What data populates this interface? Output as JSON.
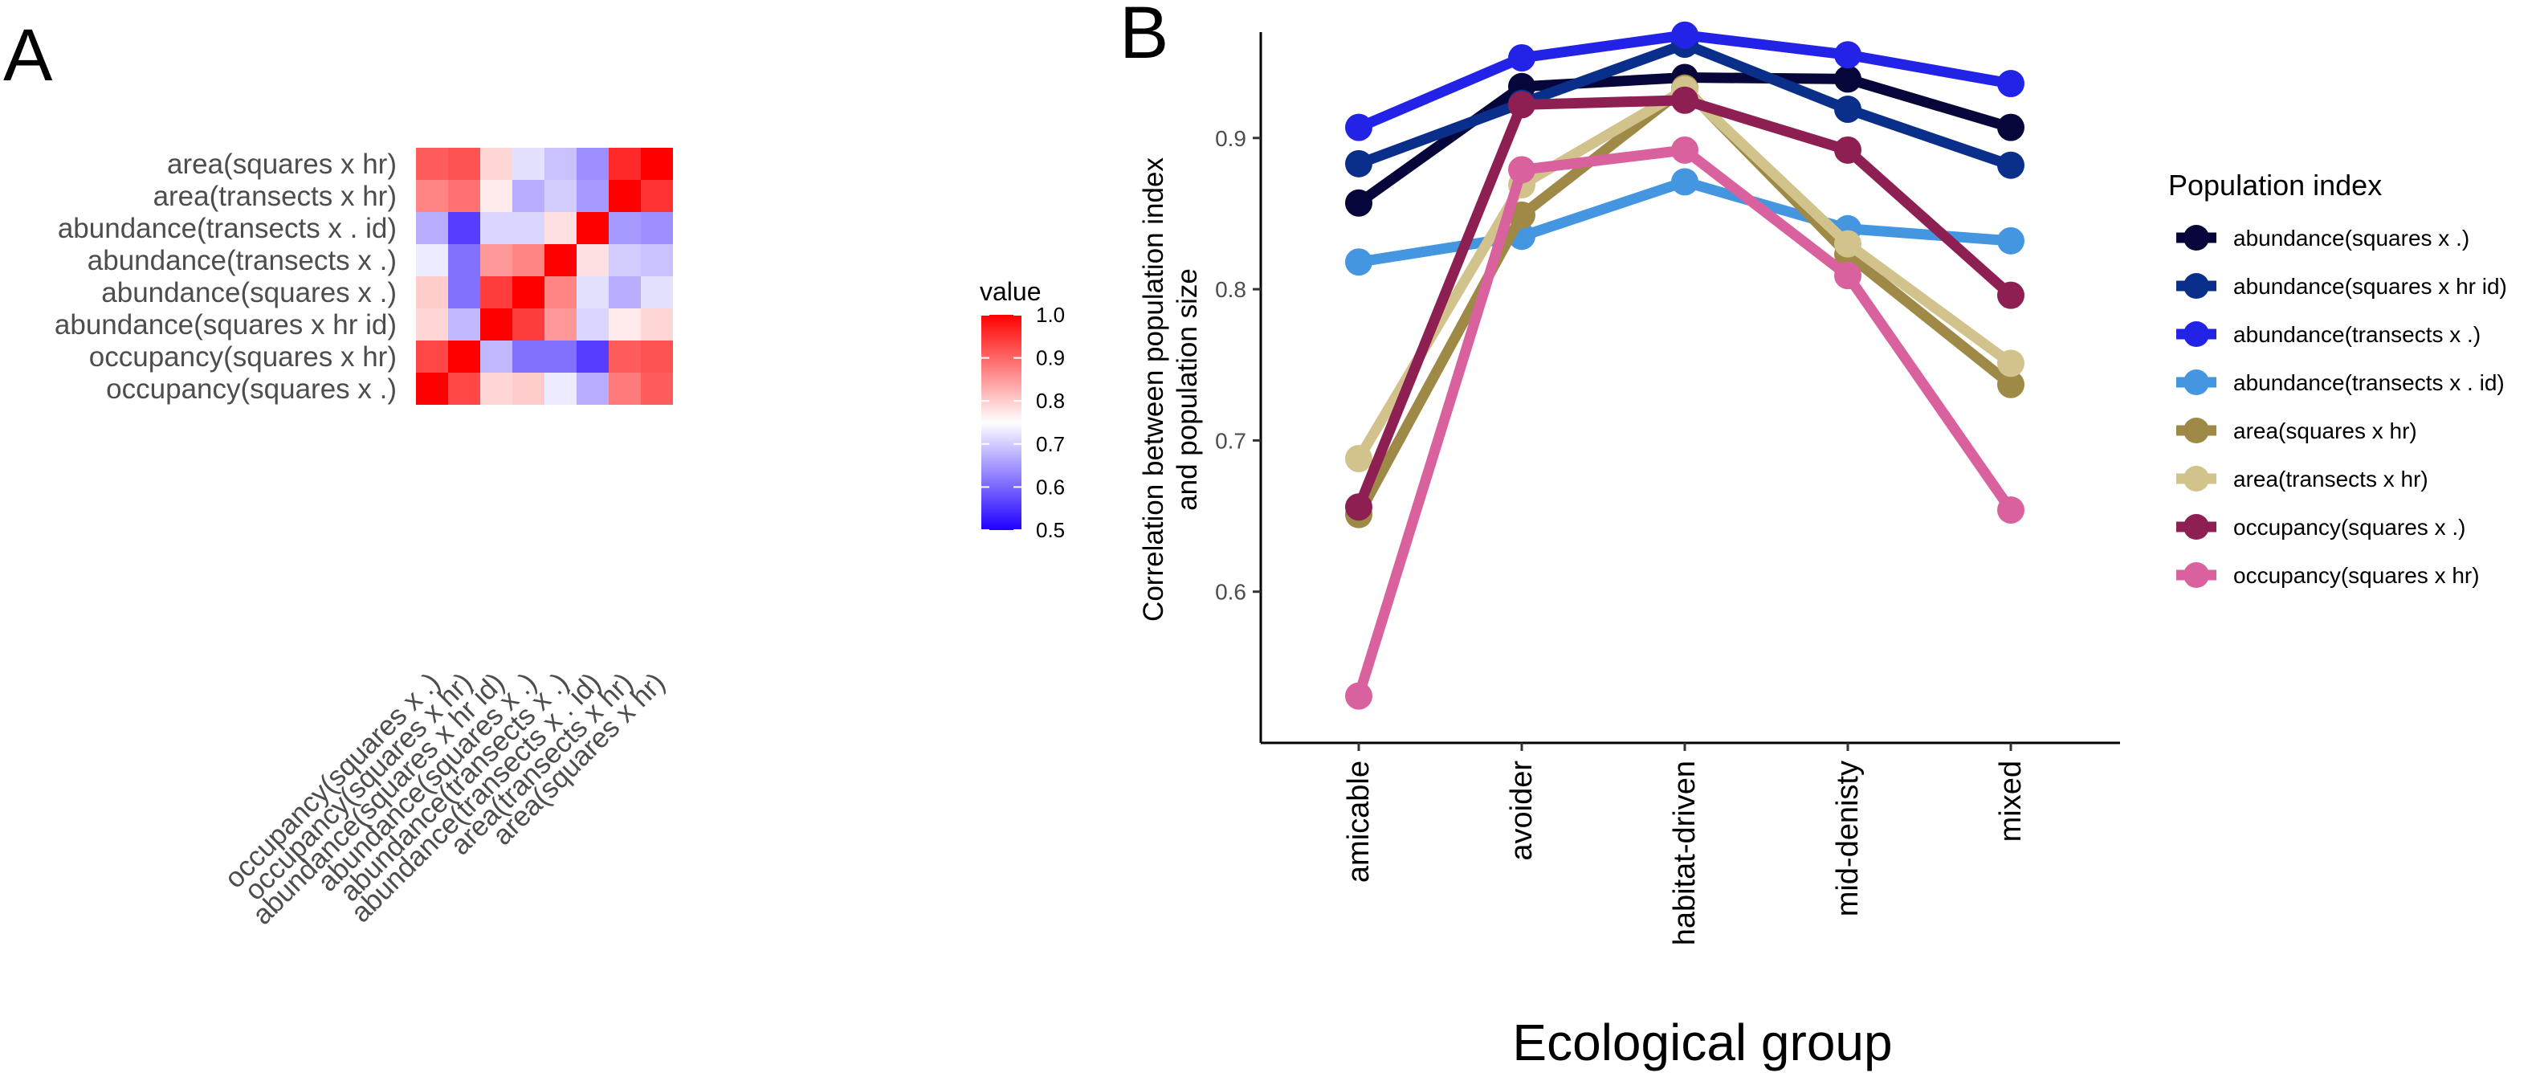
{
  "panel_labels": {
    "a": "A",
    "b": "B"
  },
  "chart_data": [
    {
      "type": "heatmap",
      "panel": "A",
      "rows": [
        "area(squares x hr)",
        "area(transects x hr)",
        "abundance(transects x . id)",
        "abundance(transects x .)",
        "abundance(squares x .)",
        "abundance(squares x hr id)",
        "occupancy(squares x hr)",
        "occupancy(squares x .)"
      ],
      "columns": [
        "occupancy(squares x .)",
        "occupancy(squares x hr)",
        "abundance(squares x hr id)",
        "abundance(squares x .)",
        "abundance(transects x .)",
        "abundance(transects x . id)",
        "area(transects x hr)",
        "area(squares x hr)"
      ],
      "values": [
        [
          0.91,
          0.92,
          0.79,
          0.72,
          0.69,
          0.64,
          0.96,
          1.0
        ],
        [
          0.87,
          0.89,
          0.77,
          0.67,
          0.7,
          0.65,
          1.0,
          0.95
        ],
        [
          0.67,
          0.56,
          0.71,
          0.71,
          0.78,
          1.0,
          0.65,
          0.64
        ],
        [
          0.73,
          0.61,
          0.85,
          0.87,
          1.0,
          0.78,
          0.7,
          0.69
        ],
        [
          0.8,
          0.61,
          0.94,
          1.0,
          0.87,
          0.72,
          0.67,
          0.72
        ],
        [
          0.79,
          0.68,
          1.0,
          0.94,
          0.85,
          0.71,
          0.77,
          0.79
        ],
        [
          0.93,
          1.0,
          0.68,
          0.61,
          0.61,
          0.56,
          0.91,
          0.92
        ],
        [
          1.0,
          0.93,
          0.79,
          0.8,
          0.73,
          0.67,
          0.88,
          0.91
        ]
      ],
      "legend": {
        "title": "value",
        "ticks": [
          "1.0",
          "0.9",
          "0.8",
          "0.7",
          "0.6",
          "0.5"
        ],
        "range": [
          0.5,
          1.0
        ],
        "colors": {
          "low": "#2000ff",
          "mid": "#ffffff",
          "high": "#ff0000",
          "midpoint": 0.75
        }
      }
    },
    {
      "type": "line",
      "panel": "B",
      "categories": [
        "amicable",
        "avoider",
        "habitat-driven",
        "mid-denisty",
        "mixed"
      ],
      "ylabel_lines": [
        "Correlation between population index",
        "and population size"
      ],
      "xlabel": "Ecological group",
      "ylim": [
        0.5,
        0.97
      ],
      "yticks": [
        "0.6",
        "0.7",
        "0.8",
        "0.9"
      ],
      "legend_title": "Population index",
      "legend_position": "right",
      "series": [
        {
          "name": "abundance(squares x .)",
          "color": "#06063a",
          "values": [
            0.857,
            0.934,
            0.94,
            0.939,
            0.907
          ]
        },
        {
          "name": "abundance(squares x hr id)",
          "color": "#0a2f8a",
          "values": [
            0.883,
            0.923,
            0.962,
            0.919,
            0.882
          ]
        },
        {
          "name": "abundance(transects x .)",
          "color": "#2323e8",
          "values": [
            0.907,
            0.953,
            0.968,
            0.955,
            0.936
          ]
        },
        {
          "name": "abundance(transects x . id)",
          "color": "#4496e1",
          "values": [
            0.818,
            0.835,
            0.871,
            0.84,
            0.832
          ]
        },
        {
          "name": "area(squares x hr)",
          "color": "#9e8a46",
          "values": [
            0.651,
            0.849,
            0.933,
            0.823,
            0.737
          ]
        },
        {
          "name": "area(transects x hr)",
          "color": "#d2c28c",
          "values": [
            0.688,
            0.869,
            0.932,
            0.83,
            0.751
          ]
        },
        {
          "name": "occupancy(squares x .)",
          "color": "#8e1f52",
          "values": [
            0.656,
            0.922,
            0.925,
            0.892,
            0.796
          ]
        },
        {
          "name": "occupancy(squares x hr)",
          "color": "#d9619e",
          "values": [
            0.531,
            0.879,
            0.892,
            0.809,
            0.654
          ]
        }
      ]
    }
  ]
}
